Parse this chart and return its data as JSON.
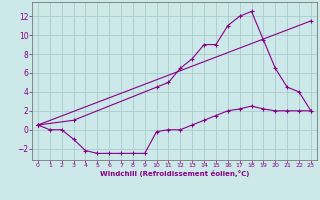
{
  "xlabel": "Windchill (Refroidissement éolien,°C)",
  "bg_color": "#cce8e8",
  "grid_color": "#aacccc",
  "line_color": "#880088",
  "xlim": [
    -0.5,
    23.5
  ],
  "ylim": [
    -3.2,
    13.5
  ],
  "xticks": [
    0,
    1,
    2,
    3,
    4,
    5,
    6,
    7,
    8,
    9,
    10,
    11,
    12,
    13,
    14,
    15,
    16,
    17,
    18,
    19,
    20,
    21,
    22,
    23
  ],
  "yticks": [
    -2,
    0,
    2,
    4,
    6,
    8,
    10,
    12
  ],
  "line1_x": [
    0,
    1,
    2,
    3,
    4,
    5,
    6,
    7,
    8,
    9,
    10,
    11,
    12,
    13,
    14,
    15,
    16,
    17,
    18,
    19,
    20,
    21,
    22,
    23
  ],
  "line1_y": [
    0.5,
    0.0,
    0.0,
    -1.0,
    -2.2,
    -2.5,
    -2.5,
    -2.5,
    -2.5,
    -2.5,
    -0.2,
    0.0,
    0.0,
    0.5,
    1.0,
    1.5,
    2.0,
    2.2,
    2.5,
    2.2,
    2.0,
    2.0,
    2.0,
    2.0
  ],
  "line2_x": [
    0,
    3,
    10,
    11,
    12,
    13,
    14,
    15,
    16,
    17,
    18,
    19,
    20,
    21,
    22,
    23
  ],
  "line2_y": [
    0.5,
    1.0,
    4.5,
    5.0,
    6.5,
    7.5,
    9.0,
    9.0,
    11.0,
    12.0,
    12.5,
    9.5,
    6.5,
    4.5,
    4.0,
    2.0
  ],
  "line3_x": [
    0,
    23
  ],
  "line3_y": [
    0.5,
    11.5
  ]
}
